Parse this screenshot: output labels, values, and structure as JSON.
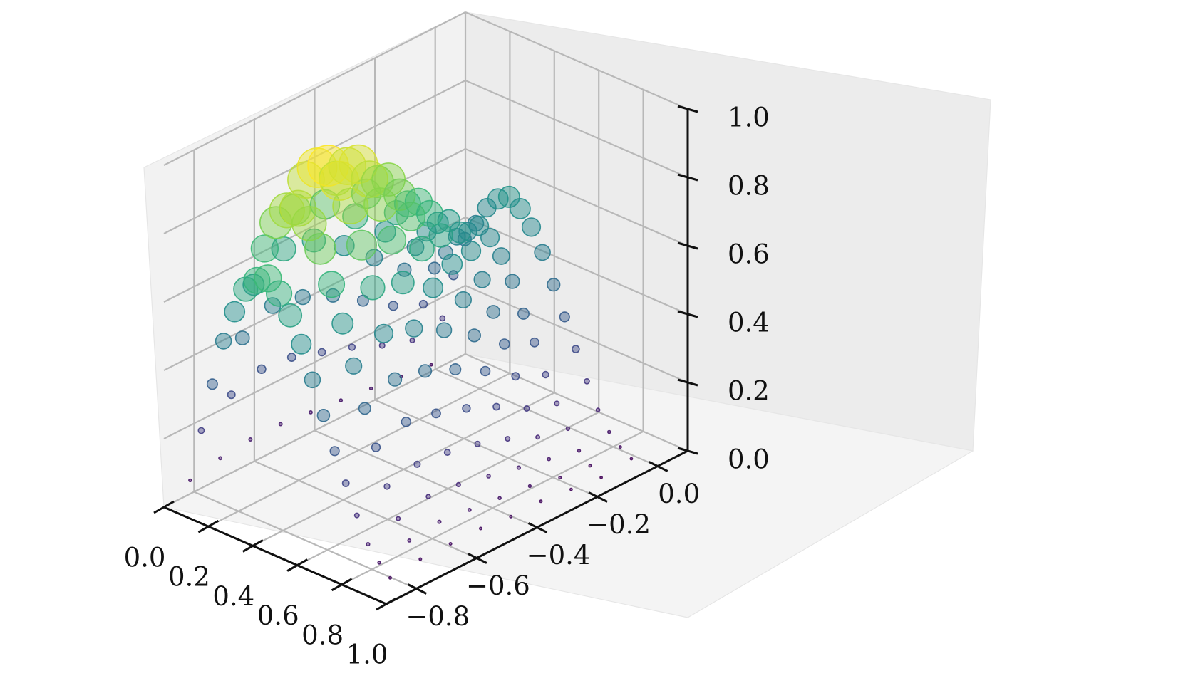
{
  "chart_data": {
    "type": "scatter",
    "projection": "3d",
    "title": "",
    "xlabel": "",
    "ylabel": "",
    "zlabel": "",
    "xlim": [
      0.0,
      1.0
    ],
    "ylim": [
      -0.9,
      0.1
    ],
    "zlim": [
      0.0,
      1.0
    ],
    "grid": true,
    "colormap": "viridis",
    "x_ticks": [
      "0.0",
      "0.2",
      "0.4",
      "0.6",
      "0.8",
      "1.0"
    ],
    "x_tick_values": [
      0.0,
      0.2,
      0.4,
      0.6,
      0.8,
      1.0
    ],
    "y_ticks": [
      "0.0",
      "−0.2",
      "−0.4",
      "−0.6",
      "−0.8"
    ],
    "y_tick_values": [
      0.0,
      -0.2,
      -0.4,
      -0.6,
      -0.8
    ],
    "z_ticks": [
      "0.0",
      "0.2",
      "0.4",
      "0.6",
      "0.8",
      "1.0"
    ],
    "z_tick_values": [
      0.0,
      0.2,
      0.4,
      0.6,
      0.8,
      1.0
    ],
    "color_encoding": "z",
    "size_encoding": "z",
    "points": [
      {
        "x": 0.05,
        "y": -0.05,
        "z": 0.05
      },
      {
        "x": 0.1,
        "y": -0.05,
        "z": 0.2
      },
      {
        "x": 0.15,
        "y": -0.05,
        "z": 0.34
      },
      {
        "x": 0.2,
        "y": -0.05,
        "z": 0.46
      },
      {
        "x": 0.25,
        "y": -0.05,
        "z": 0.52
      },
      {
        "x": 0.3,
        "y": -0.05,
        "z": 0.58
      },
      {
        "x": 0.35,
        "y": -0.05,
        "z": 0.62
      },
      {
        "x": 0.4,
        "y": -0.05,
        "z": 0.64
      },
      {
        "x": 0.45,
        "y": -0.05,
        "z": 0.62
      },
      {
        "x": 0.5,
        "y": -0.05,
        "z": 0.58
      },
      {
        "x": 0.55,
        "y": -0.05,
        "z": 0.52
      },
      {
        "x": 0.6,
        "y": -0.05,
        "z": 0.44
      },
      {
        "x": 0.65,
        "y": -0.05,
        "z": 0.36
      },
      {
        "x": 0.7,
        "y": -0.05,
        "z": 0.28
      },
      {
        "x": 0.75,
        "y": -0.05,
        "z": 0.2
      },
      {
        "x": 0.8,
        "y": -0.05,
        "z": 0.13
      },
      {
        "x": 0.85,
        "y": -0.05,
        "z": 0.08
      },
      {
        "x": 0.9,
        "y": -0.05,
        "z": 0.05
      },
      {
        "x": 0.95,
        "y": -0.05,
        "z": 0.03
      },
      {
        "x": 0.05,
        "y": -0.15,
        "z": 0.06
      },
      {
        "x": 0.1,
        "y": -0.15,
        "z": 0.18
      },
      {
        "x": 0.15,
        "y": -0.15,
        "z": 0.3
      },
      {
        "x": 0.2,
        "y": -0.15,
        "z": 0.42
      },
      {
        "x": 0.25,
        "y": -0.15,
        "z": 0.48
      },
      {
        "x": 0.3,
        "y": -0.15,
        "z": 0.54
      },
      {
        "x": 0.35,
        "y": -0.15,
        "z": 0.57
      },
      {
        "x": 0.4,
        "y": -0.15,
        "z": 0.6
      },
      {
        "x": 0.45,
        "y": -0.15,
        "z": 0.58
      },
      {
        "x": 0.5,
        "y": -0.15,
        "z": 0.54
      },
      {
        "x": 0.55,
        "y": -0.15,
        "z": 0.48
      },
      {
        "x": 0.6,
        "y": -0.15,
        "z": 0.4
      },
      {
        "x": 0.65,
        "y": -0.15,
        "z": 0.33
      },
      {
        "x": 0.7,
        "y": -0.15,
        "z": 0.25
      },
      {
        "x": 0.75,
        "y": -0.15,
        "z": 0.18
      },
      {
        "x": 0.8,
        "y": -0.15,
        "z": 0.12
      },
      {
        "x": 0.85,
        "y": -0.15,
        "z": 0.07
      },
      {
        "x": 0.9,
        "y": -0.15,
        "z": 0.04
      },
      {
        "x": 0.95,
        "y": -0.15,
        "z": 0.02
      },
      {
        "x": 0.05,
        "y": -0.25,
        "z": 0.07
      },
      {
        "x": 0.1,
        "y": -0.25,
        "z": 0.21
      },
      {
        "x": 0.15,
        "y": -0.25,
        "z": 0.34
      },
      {
        "x": 0.2,
        "y": -0.25,
        "z": 0.46
      },
      {
        "x": 0.25,
        "y": -0.25,
        "z": 0.54
      },
      {
        "x": 0.3,
        "y": -0.25,
        "z": 0.6
      },
      {
        "x": 0.35,
        "y": -0.25,
        "z": 0.64
      },
      {
        "x": 0.4,
        "y": -0.25,
        "z": 0.66
      },
      {
        "x": 0.45,
        "y": -0.25,
        "z": 0.64
      },
      {
        "x": 0.5,
        "y": -0.25,
        "z": 0.6
      },
      {
        "x": 0.55,
        "y": -0.25,
        "z": 0.53
      },
      {
        "x": 0.6,
        "y": -0.25,
        "z": 0.45
      },
      {
        "x": 0.65,
        "y": -0.25,
        "z": 0.37
      },
      {
        "x": 0.7,
        "y": -0.25,
        "z": 0.29
      },
      {
        "x": 0.75,
        "y": -0.25,
        "z": 0.21
      },
      {
        "x": 0.8,
        "y": -0.25,
        "z": 0.14
      },
      {
        "x": 0.85,
        "y": -0.25,
        "z": 0.09
      },
      {
        "x": 0.9,
        "y": -0.25,
        "z": 0.05
      },
      {
        "x": 0.95,
        "y": -0.25,
        "z": 0.03
      },
      {
        "x": 0.05,
        "y": -0.35,
        "z": 0.08
      },
      {
        "x": 0.1,
        "y": -0.35,
        "z": 0.25
      },
      {
        "x": 0.15,
        "y": -0.35,
        "z": 0.4
      },
      {
        "x": 0.2,
        "y": -0.35,
        "z": 0.54
      },
      {
        "x": 0.25,
        "y": -0.35,
        "z": 0.63
      },
      {
        "x": 0.3,
        "y": -0.35,
        "z": 0.7
      },
      {
        "x": 0.35,
        "y": -0.35,
        "z": 0.74
      },
      {
        "x": 0.4,
        "y": -0.35,
        "z": 0.76
      },
      {
        "x": 0.45,
        "y": -0.35,
        "z": 0.74
      },
      {
        "x": 0.5,
        "y": -0.35,
        "z": 0.69
      },
      {
        "x": 0.55,
        "y": -0.35,
        "z": 0.62
      },
      {
        "x": 0.6,
        "y": -0.35,
        "z": 0.53
      },
      {
        "x": 0.65,
        "y": -0.35,
        "z": 0.44
      },
      {
        "x": 0.7,
        "y": -0.35,
        "z": 0.35
      },
      {
        "x": 0.75,
        "y": -0.35,
        "z": 0.26
      },
      {
        "x": 0.8,
        "y": -0.35,
        "z": 0.18
      },
      {
        "x": 0.85,
        "y": -0.35,
        "z": 0.11
      },
      {
        "x": 0.9,
        "y": -0.35,
        "z": 0.07
      },
      {
        "x": 0.95,
        "y": -0.35,
        "z": 0.04
      },
      {
        "x": 0.05,
        "y": -0.45,
        "z": 0.09
      },
      {
        "x": 0.1,
        "y": -0.45,
        "z": 0.28
      },
      {
        "x": 0.15,
        "y": -0.45,
        "z": 0.46
      },
      {
        "x": 0.2,
        "y": -0.45,
        "z": 0.62
      },
      {
        "x": 0.25,
        "y": -0.45,
        "z": 0.72
      },
      {
        "x": 0.3,
        "y": -0.45,
        "z": 0.8
      },
      {
        "x": 0.35,
        "y": -0.45,
        "z": 0.85
      },
      {
        "x": 0.4,
        "y": -0.45,
        "z": 0.87
      },
      {
        "x": 0.45,
        "y": -0.45,
        "z": 0.84
      },
      {
        "x": 0.5,
        "y": -0.45,
        "z": 0.79
      },
      {
        "x": 0.55,
        "y": -0.45,
        "z": 0.71
      },
      {
        "x": 0.6,
        "y": -0.45,
        "z": 0.61
      },
      {
        "x": 0.65,
        "y": -0.45,
        "z": 0.5
      },
      {
        "x": 0.7,
        "y": -0.45,
        "z": 0.4
      },
      {
        "x": 0.75,
        "y": -0.45,
        "z": 0.3
      },
      {
        "x": 0.8,
        "y": -0.45,
        "z": 0.21
      },
      {
        "x": 0.85,
        "y": -0.45,
        "z": 0.13
      },
      {
        "x": 0.9,
        "y": -0.45,
        "z": 0.08
      },
      {
        "x": 0.95,
        "y": -0.45,
        "z": 0.04
      },
      {
        "x": 0.05,
        "y": -0.55,
        "z": 0.1
      },
      {
        "x": 0.1,
        "y": -0.55,
        "z": 0.31
      },
      {
        "x": 0.15,
        "y": -0.55,
        "z": 0.5
      },
      {
        "x": 0.2,
        "y": -0.55,
        "z": 0.68
      },
      {
        "x": 0.25,
        "y": -0.55,
        "z": 0.8
      },
      {
        "x": 0.3,
        "y": -0.55,
        "z": 0.89
      },
      {
        "x": 0.35,
        "y": -0.55,
        "z": 0.94
      },
      {
        "x": 0.4,
        "y": -0.55,
        "z": 0.96
      },
      {
        "x": 0.45,
        "y": -0.55,
        "z": 0.93
      },
      {
        "x": 0.5,
        "y": -0.55,
        "z": 0.87
      },
      {
        "x": 0.55,
        "y": -0.55,
        "z": 0.78
      },
      {
        "x": 0.6,
        "y": -0.55,
        "z": 0.67
      },
      {
        "x": 0.65,
        "y": -0.55,
        "z": 0.55
      },
      {
        "x": 0.7,
        "y": -0.55,
        "z": 0.44
      },
      {
        "x": 0.75,
        "y": -0.55,
        "z": 0.33
      },
      {
        "x": 0.8,
        "y": -0.55,
        "z": 0.23
      },
      {
        "x": 0.85,
        "y": -0.55,
        "z": 0.15
      },
      {
        "x": 0.9,
        "y": -0.55,
        "z": 0.09
      },
      {
        "x": 0.95,
        "y": -0.55,
        "z": 0.05
      },
      {
        "x": 0.05,
        "y": -0.65,
        "z": 0.1
      },
      {
        "x": 0.1,
        "y": -0.65,
        "z": 0.32
      },
      {
        "x": 0.15,
        "y": -0.65,
        "z": 0.52
      },
      {
        "x": 0.2,
        "y": -0.65,
        "z": 0.7
      },
      {
        "x": 0.25,
        "y": -0.65,
        "z": 0.83
      },
      {
        "x": 0.3,
        "y": -0.65,
        "z": 0.93
      },
      {
        "x": 0.35,
        "y": -0.65,
        "z": 0.98
      },
      {
        "x": 0.4,
        "y": -0.65,
        "z": 1.0
      },
      {
        "x": 0.45,
        "y": -0.65,
        "z": 0.97
      },
      {
        "x": 0.5,
        "y": -0.65,
        "z": 0.91
      },
      {
        "x": 0.55,
        "y": -0.65,
        "z": 0.81
      },
      {
        "x": 0.6,
        "y": -0.65,
        "z": 0.7
      },
      {
        "x": 0.65,
        "y": -0.65,
        "z": 0.58
      },
      {
        "x": 0.7,
        "y": -0.65,
        "z": 0.46
      },
      {
        "x": 0.75,
        "y": -0.65,
        "z": 0.35
      },
      {
        "x": 0.8,
        "y": -0.65,
        "z": 0.24
      },
      {
        "x": 0.85,
        "y": -0.65,
        "z": 0.16
      },
      {
        "x": 0.9,
        "y": -0.65,
        "z": 0.1
      },
      {
        "x": 0.95,
        "y": -0.65,
        "z": 0.05
      },
      {
        "x": 0.05,
        "y": -0.75,
        "z": 0.09
      },
      {
        "x": 0.1,
        "y": -0.75,
        "z": 0.29
      },
      {
        "x": 0.15,
        "y": -0.75,
        "z": 0.47
      },
      {
        "x": 0.2,
        "y": -0.75,
        "z": 0.64
      },
      {
        "x": 0.25,
        "y": -0.75,
        "z": 0.76
      },
      {
        "x": 0.3,
        "y": -0.75,
        "z": 0.85
      },
      {
        "x": 0.35,
        "y": -0.75,
        "z": 0.9
      },
      {
        "x": 0.4,
        "y": -0.75,
        "z": 0.92
      },
      {
        "x": 0.45,
        "y": -0.75,
        "z": 0.89
      },
      {
        "x": 0.5,
        "y": -0.75,
        "z": 0.83
      },
      {
        "x": 0.55,
        "y": -0.75,
        "z": 0.74
      },
      {
        "x": 0.6,
        "y": -0.75,
        "z": 0.64
      },
      {
        "x": 0.65,
        "y": -0.75,
        "z": 0.53
      },
      {
        "x": 0.7,
        "y": -0.75,
        "z": 0.42
      },
      {
        "x": 0.75,
        "y": -0.75,
        "z": 0.32
      },
      {
        "x": 0.8,
        "y": -0.75,
        "z": 0.22
      },
      {
        "x": 0.85,
        "y": -0.75,
        "z": 0.14
      },
      {
        "x": 0.9,
        "y": -0.75,
        "z": 0.09
      },
      {
        "x": 0.95,
        "y": -0.75,
        "z": 0.05
      },
      {
        "x": 0.05,
        "y": -0.85,
        "z": 0.07
      },
      {
        "x": 0.1,
        "y": -0.85,
        "z": 0.23
      },
      {
        "x": 0.15,
        "y": -0.85,
        "z": 0.38
      },
      {
        "x": 0.2,
        "y": -0.85,
        "z": 0.52
      },
      {
        "x": 0.25,
        "y": -0.85,
        "z": 0.62
      },
      {
        "x": 0.3,
        "y": -0.85,
        "z": 0.7
      },
      {
        "x": 0.35,
        "y": -0.85,
        "z": 0.74
      },
      {
        "x": 0.4,
        "y": -0.85,
        "z": 0.76
      },
      {
        "x": 0.45,
        "y": -0.85,
        "z": 0.73
      },
      {
        "x": 0.5,
        "y": -0.85,
        "z": 0.68
      },
      {
        "x": 0.55,
        "y": -0.85,
        "z": 0.61
      },
      {
        "x": 0.6,
        "y": -0.85,
        "z": 0.52
      },
      {
        "x": 0.65,
        "y": -0.85,
        "z": 0.43
      },
      {
        "x": 0.7,
        "y": -0.85,
        "z": 0.34
      },
      {
        "x": 0.75,
        "y": -0.85,
        "z": 0.26
      },
      {
        "x": 0.8,
        "y": -0.85,
        "z": 0.18
      },
      {
        "x": 0.85,
        "y": -0.85,
        "z": 0.11
      },
      {
        "x": 0.9,
        "y": -0.85,
        "z": 0.07
      },
      {
        "x": 0.95,
        "y": -0.85,
        "z": 0.04
      }
    ]
  }
}
